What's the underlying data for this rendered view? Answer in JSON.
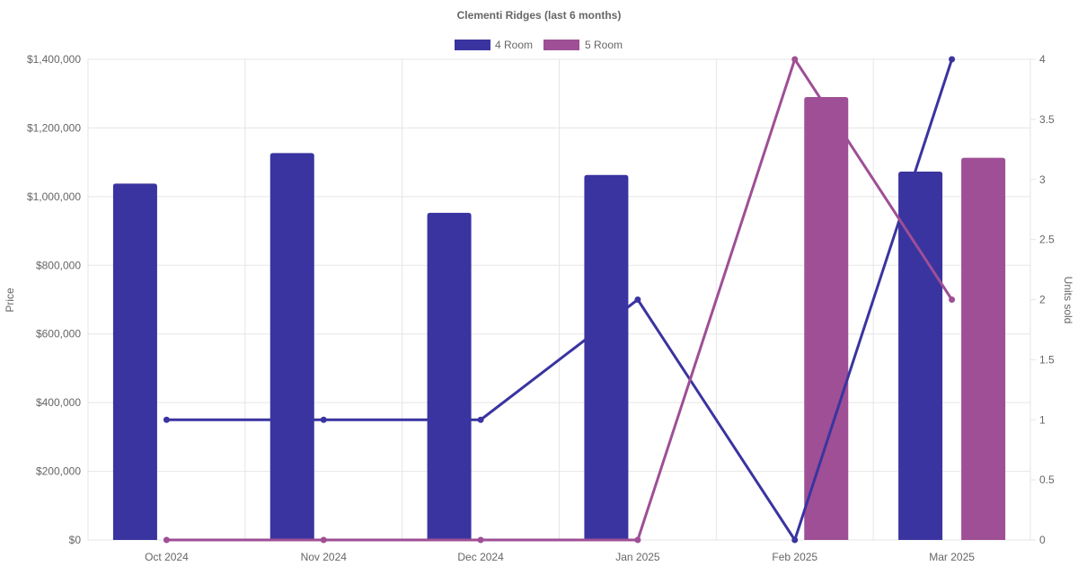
{
  "chart_data": {
    "type": "bar",
    "title": "Clementi Ridges (last 6 months)",
    "categories": [
      "Oct 2024",
      "Nov 2024",
      "Dec 2024",
      "Jan 2025",
      "Feb 2025",
      "Mar 2025"
    ],
    "y_left": {
      "label": "Price",
      "ylim": [
        0,
        1400000
      ],
      "ticks": [
        "$0",
        "$200,000",
        "$400,000",
        "$600,000",
        "$800,000",
        "$1,000,000",
        "$1,200,000",
        "$1,400,000"
      ]
    },
    "y_right": {
      "label": "Units sold",
      "ylim": [
        0,
        4
      ],
      "ticks": [
        "0",
        "0.5",
        "1",
        "1.5",
        "2",
        "2.5",
        "3",
        "3.5",
        "4"
      ]
    },
    "legend_position": "top-center",
    "grid": true,
    "series": [
      {
        "name": "4 Room",
        "color": "#3a34a0",
        "price": [
          1038000,
          1127000,
          953000,
          1063000,
          null,
          1073000
        ],
        "units_sold": [
          1,
          1,
          1,
          2,
          0,
          4
        ]
      },
      {
        "name": "5 Room",
        "color": "#9e4f95",
        "price": [
          null,
          null,
          null,
          null,
          1290000,
          1113000
        ],
        "units_sold": [
          0,
          0,
          0,
          0,
          4,
          2
        ]
      }
    ]
  }
}
